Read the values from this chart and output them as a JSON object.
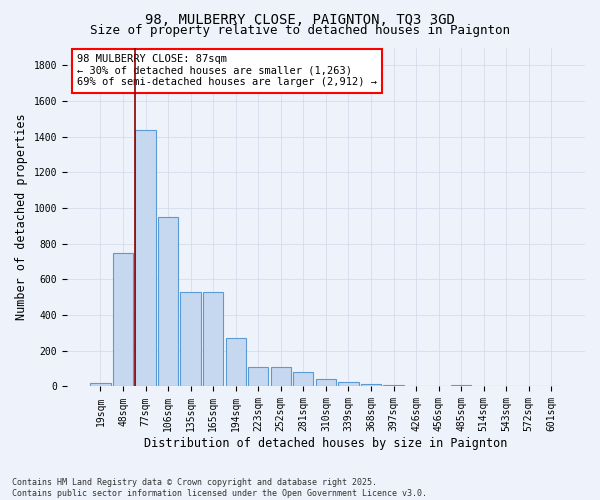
{
  "title_line1": "98, MULBERRY CLOSE, PAIGNTON, TQ3 3GD",
  "title_line2": "Size of property relative to detached houses in Paignton",
  "xlabel": "Distribution of detached houses by size in Paignton",
  "ylabel": "Number of detached properties",
  "categories": [
    "19sqm",
    "48sqm",
    "77sqm",
    "106sqm",
    "135sqm",
    "165sqm",
    "194sqm",
    "223sqm",
    "252sqm",
    "281sqm",
    "310sqm",
    "339sqm",
    "368sqm",
    "397sqm",
    "426sqm",
    "456sqm",
    "485sqm",
    "514sqm",
    "543sqm",
    "572sqm",
    "601sqm"
  ],
  "values": [
    20,
    750,
    1440,
    950,
    530,
    530,
    270,
    110,
    110,
    80,
    40,
    25,
    15,
    10,
    5,
    5,
    10,
    5,
    0,
    5,
    5
  ],
  "bar_color": "#c5d8f0",
  "bar_edge_color": "#5b9bd5",
  "vline_color": "#8b0000",
  "vline_x_idx": 2,
  "annotation_text": "98 MULBERRY CLOSE: 87sqm\n← 30% of detached houses are smaller (1,263)\n69% of semi-detached houses are larger (2,912) →",
  "annotation_box_color": "white",
  "annotation_box_edge_color": "red",
  "ylim": [
    0,
    1900
  ],
  "yticks": [
    0,
    200,
    400,
    600,
    800,
    1000,
    1200,
    1400,
    1600,
    1800
  ],
  "footnote": "Contains HM Land Registry data © Crown copyright and database right 2025.\nContains public sector information licensed under the Open Government Licence v3.0.",
  "bg_color": "#eef2fa",
  "plot_bg_color": "#eef2fa",
  "grid_color": "#d0d8e8",
  "title_fontsize": 10,
  "subtitle_fontsize": 9,
  "axis_label_fontsize": 8.5,
  "tick_fontsize": 7,
  "annotation_fontsize": 7.5
}
